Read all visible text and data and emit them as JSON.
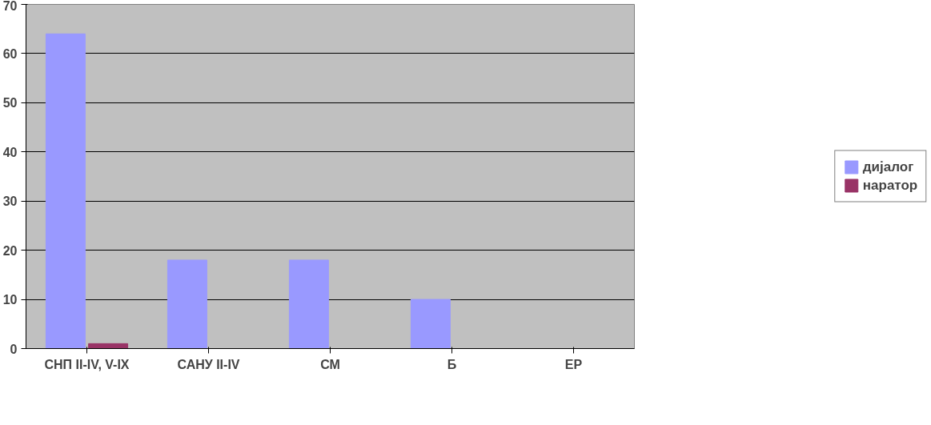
{
  "chart_data": {
    "type": "bar",
    "categories": [
      "СНП II-IV, V-IX",
      "САНУ II-IV",
      "СМ",
      "Б",
      "ЕР"
    ],
    "series": [
      {
        "name": "дијалог",
        "color": "#9999ff",
        "values": [
          64,
          18,
          18,
          10,
          0
        ]
      },
      {
        "name": "наратор",
        "color": "#993366",
        "values": [
          1,
          0,
          0,
          0,
          0
        ]
      }
    ],
    "ylim": [
      0,
      70
    ],
    "yticks": [
      0,
      10,
      20,
      30,
      40,
      50,
      60,
      70
    ],
    "grid": "y",
    "legend": "right"
  }
}
